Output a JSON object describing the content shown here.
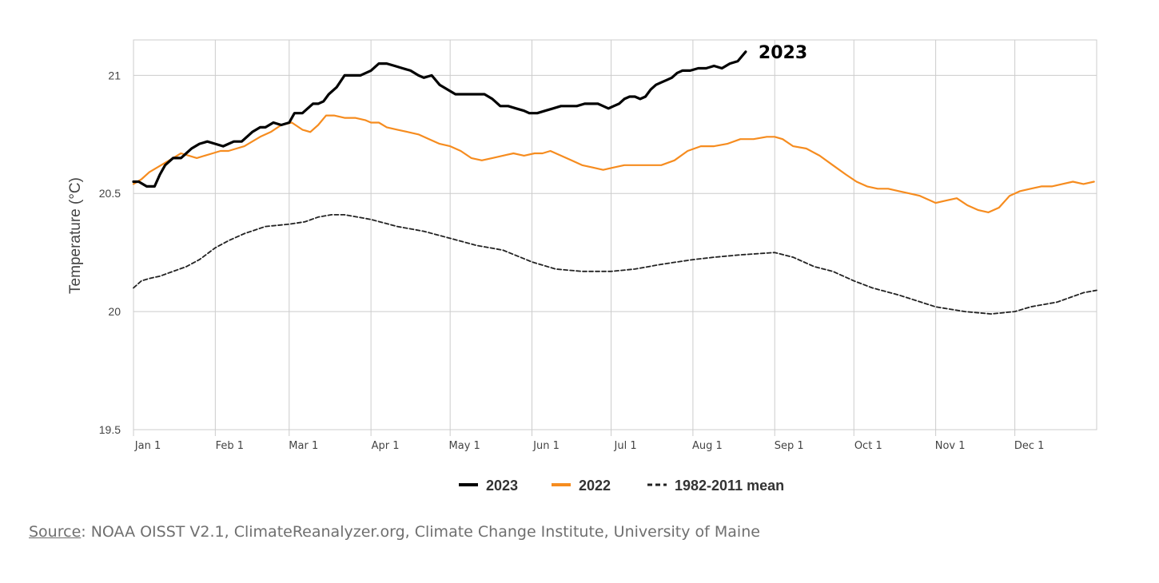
{
  "chart_data": {
    "type": "line",
    "ylabel": "Temperature (°C)",
    "ylim": [
      19.5,
      21.15
    ],
    "yticks": [
      "19.5",
      "20",
      "20.5",
      "21"
    ],
    "xlim": [
      0,
      365
    ],
    "x_tick_labels": [
      "Jan 1",
      "Feb 1",
      "Mar 1",
      "Apr 1",
      "May 1",
      "Jun 1",
      "Jul 1",
      "Aug 1",
      "Sep 1",
      "Oct 1",
      "Nov 1",
      "Dec 1"
    ],
    "x_tick_days": [
      0,
      31,
      59,
      90,
      120,
      151,
      181,
      212,
      243,
      273,
      304,
      334
    ],
    "grid": true,
    "legend_position": "bottom-center",
    "end_label": "2023",
    "series": [
      {
        "name": "2023",
        "color": "#000000",
        "style": "solid",
        "x": [
          0,
          2,
          5,
          8,
          10,
          12,
          15,
          18,
          20,
          22,
          25,
          28,
          31,
          34,
          38,
          41,
          45,
          48,
          50,
          53,
          56,
          59,
          61,
          64,
          66,
          68,
          70,
          72,
          74,
          77,
          80,
          83,
          86,
          88,
          90,
          93,
          96,
          99,
          102,
          105,
          108,
          110,
          113,
          116,
          119,
          122,
          126,
          130,
          133,
          136,
          139,
          142,
          145,
          148,
          150,
          153,
          156,
          159,
          162,
          165,
          168,
          171,
          174,
          176,
          178,
          180,
          182,
          184,
          186,
          188,
          190,
          192,
          194,
          196,
          198,
          200,
          202,
          204,
          206,
          208,
          211,
          214,
          217,
          220,
          223,
          226,
          229,
          232
        ],
        "y": [
          20.55,
          20.55,
          20.53,
          20.53,
          20.58,
          20.62,
          20.65,
          20.65,
          20.67,
          20.69,
          20.71,
          20.72,
          20.71,
          20.7,
          20.72,
          20.72,
          20.76,
          20.78,
          20.78,
          20.8,
          20.79,
          20.8,
          20.84,
          20.84,
          20.86,
          20.88,
          20.88,
          20.89,
          20.92,
          20.95,
          21.0,
          21.0,
          21.0,
          21.01,
          21.02,
          21.05,
          21.05,
          21.04,
          21.03,
          21.02,
          21.0,
          20.99,
          21.0,
          20.96,
          20.94,
          20.92,
          20.92,
          20.92,
          20.92,
          20.9,
          20.87,
          20.87,
          20.86,
          20.85,
          20.84,
          20.84,
          20.85,
          20.86,
          20.87,
          20.87,
          20.87,
          20.88,
          20.88,
          20.88,
          20.87,
          20.86,
          20.87,
          20.88,
          20.9,
          20.91,
          20.91,
          20.9,
          20.91,
          20.94,
          20.96,
          20.97,
          20.98,
          20.99,
          21.01,
          21.02,
          21.02,
          21.03,
          21.03,
          21.04,
          21.03,
          21.05,
          21.06,
          21.1
        ]
      },
      {
        "name": "2022",
        "color": "#f68c1f",
        "style": "solid",
        "x": [
          0,
          3,
          6,
          9,
          12,
          15,
          18,
          21,
          24,
          27,
          30,
          33,
          36,
          39,
          42,
          45,
          48,
          52,
          56,
          60,
          64,
          67,
          70,
          73,
          76,
          80,
          84,
          88,
          90,
          93,
          96,
          100,
          104,
          108,
          112,
          116,
          120,
          124,
          128,
          132,
          136,
          140,
          144,
          148,
          152,
          155,
          158,
          162,
          166,
          170,
          174,
          178,
          182,
          186,
          190,
          195,
          200,
          205,
          210,
          215,
          220,
          225,
          230,
          235,
          240,
          243,
          246,
          250,
          255,
          260,
          265,
          270,
          274,
          278,
          282,
          286,
          290,
          294,
          298,
          302,
          304,
          308,
          312,
          316,
          320,
          324,
          328,
          332,
          336,
          340,
          344,
          348,
          352,
          356,
          360,
          364
        ],
        "y": [
          20.54,
          20.56,
          20.59,
          20.61,
          20.63,
          20.65,
          20.67,
          20.66,
          20.65,
          20.66,
          20.67,
          20.68,
          20.68,
          20.69,
          20.7,
          20.72,
          20.74,
          20.76,
          20.79,
          20.8,
          20.77,
          20.76,
          20.79,
          20.83,
          20.83,
          20.82,
          20.82,
          20.81,
          20.8,
          20.8,
          20.78,
          20.77,
          20.76,
          20.75,
          20.73,
          20.71,
          20.7,
          20.68,
          20.65,
          20.64,
          20.65,
          20.66,
          20.67,
          20.66,
          20.67,
          20.67,
          20.68,
          20.66,
          20.64,
          20.62,
          20.61,
          20.6,
          20.61,
          20.62,
          20.62,
          20.62,
          20.62,
          20.64,
          20.68,
          20.7,
          20.7,
          20.71,
          20.73,
          20.73,
          20.74,
          20.74,
          20.73,
          20.7,
          20.69,
          20.66,
          20.62,
          20.58,
          20.55,
          20.53,
          20.52,
          20.52,
          20.51,
          20.5,
          20.49,
          20.47,
          20.46,
          20.47,
          20.48,
          20.45,
          20.43,
          20.42,
          20.44,
          20.49,
          20.51,
          20.52,
          20.53,
          20.53,
          20.54,
          20.55,
          20.54,
          20.55
        ]
      },
      {
        "name": "1982-2011 mean",
        "color": "#222222",
        "style": "dashed",
        "x": [
          0,
          3,
          6,
          10,
          15,
          20,
          25,
          31,
          36,
          42,
          50,
          59,
          65,
          70,
          75,
          80,
          85,
          90,
          100,
          110,
          120,
          130,
          140,
          151,
          160,
          170,
          181,
          190,
          200,
          206,
          212,
          220,
          230,
          243,
          250,
          258,
          265,
          273,
          280,
          290,
          304,
          315,
          325,
          334,
          340,
          345,
          350,
          355,
          360,
          365
        ],
        "y": [
          20.1,
          20.13,
          20.14,
          20.15,
          20.17,
          20.19,
          20.22,
          20.27,
          20.3,
          20.33,
          20.36,
          20.37,
          20.38,
          20.4,
          20.41,
          20.41,
          20.4,
          20.39,
          20.36,
          20.34,
          20.31,
          20.28,
          20.26,
          20.21,
          20.18,
          20.17,
          20.17,
          20.18,
          20.2,
          20.21,
          20.22,
          20.23,
          20.24,
          20.25,
          20.23,
          20.19,
          20.17,
          20.13,
          20.1,
          20.07,
          20.02,
          20.0,
          19.99,
          20.0,
          20.02,
          20.03,
          20.04,
          20.06,
          20.08,
          20.09
        ]
      }
    ]
  },
  "source": {
    "link_label": "Source",
    "text": ": NOAA OISST V2.1, ClimateReanalyzer.org, Climate Change Institute, University of Maine"
  }
}
